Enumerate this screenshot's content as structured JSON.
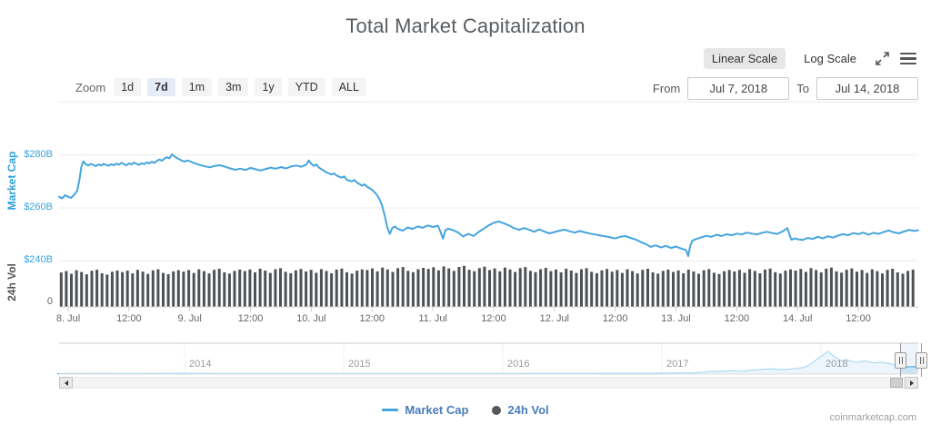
{
  "header": {
    "title": "Total Market Capitalization"
  },
  "scale_toggle": {
    "linear": "Linear Scale",
    "log": "Log Scale"
  },
  "range_selector": {
    "zoom_label": "Zoom",
    "buttons": [
      "1d",
      "7d",
      "1m",
      "3m",
      "1y",
      "YTD",
      "ALL"
    ],
    "active_button": "7d",
    "from_label": "From",
    "from_value": "Jul 7, 2018",
    "to_label": "To",
    "to_value": "Jul 14, 2018"
  },
  "legend": {
    "items": [
      {
        "label": "Market Cap",
        "symbol": "line",
        "color": "#45a5de"
      },
      {
        "label": "24h Vol",
        "symbol": "circle",
        "color": "#55585b"
      }
    ]
  },
  "watermark": "coinmarketcap.com",
  "colors": {
    "market_cap_line": "#45a5de",
    "volume_bar": "#4e5255",
    "axis_label_blue": "#38a3dc",
    "grid": "#ececec",
    "axis_line": "#d3d3d3",
    "nav_line": "#58b2e4",
    "nav_fill": "#daedf8"
  },
  "chart_data": {
    "type": "line",
    "title": "Total Market Capitalization",
    "x_unit": "hours since Jul 8 2018 00:00",
    "ylim": [
      240,
      300
    ],
    "x_ticks": [
      {
        "t": 0,
        "label": "8. Jul"
      },
      {
        "t": 12,
        "label": "12:00"
      },
      {
        "t": 24,
        "label": "9. Jul"
      },
      {
        "t": 36,
        "label": "12:00"
      },
      {
        "t": 48,
        "label": "10. Jul"
      },
      {
        "t": 60,
        "label": "12:00"
      },
      {
        "t": 72,
        "label": "11. Jul"
      },
      {
        "t": 84,
        "label": "12:00"
      },
      {
        "t": 96,
        "label": "12. Jul"
      },
      {
        "t": 108,
        "label": "12:00"
      },
      {
        "t": 120,
        "label": "13. Jul"
      },
      {
        "t": 132,
        "label": "12:00"
      },
      {
        "t": 144,
        "label": "14. Jul"
      },
      {
        "t": 156,
        "label": "12:00"
      }
    ],
    "market_cap": {
      "name": "Market Cap",
      "type": "line",
      "axis_title": "Market Cap",
      "unit": "USD billions",
      "y_ticks": [
        {
          "value": 300,
          "label": ""
        },
        {
          "value": 280,
          "label": "$280B"
        },
        {
          "value": 260,
          "label": "$260B"
        },
        {
          "value": 240,
          "label": "$240B"
        }
      ],
      "points": [
        [
          -1.8,
          264.2
        ],
        [
          -1.2,
          263.6
        ],
        [
          -0.6,
          264.8
        ],
        [
          0,
          264.2
        ],
        [
          0.6,
          263.8
        ],
        [
          1.2,
          265.0
        ],
        [
          1.8,
          266.5
        ],
        [
          2.2,
          270.5
        ],
        [
          2.6,
          275.5
        ],
        [
          3,
          277.6
        ],
        [
          3.5,
          276.4
        ],
        [
          4,
          276.0
        ],
        [
          4.5,
          276.6
        ],
        [
          5,
          276.2
        ],
        [
          5.5,
          275.8
        ],
        [
          6,
          276.4
        ],
        [
          6.5,
          276.0
        ],
        [
          7,
          276.6
        ],
        [
          7.5,
          276.2
        ],
        [
          8,
          275.9
        ],
        [
          8.5,
          276.5
        ],
        [
          9,
          276.1
        ],
        [
          9.5,
          276.7
        ],
        [
          10,
          276.3
        ],
        [
          10.5,
          277.0
        ],
        [
          11,
          276.5
        ],
        [
          11.5,
          276.1
        ],
        [
          12,
          276.8
        ],
        [
          12.5,
          276.4
        ],
        [
          13,
          277.1
        ],
        [
          13.5,
          276.6
        ],
        [
          14,
          276.2
        ],
        [
          14.5,
          276.9
        ],
        [
          15,
          276.5
        ],
        [
          15.5,
          277.2
        ],
        [
          16,
          276.8
        ],
        [
          16.5,
          277.4
        ],
        [
          17,
          277.0
        ],
        [
          17.5,
          277.7
        ],
        [
          18,
          278.3
        ],
        [
          18.5,
          277.8
        ],
        [
          19,
          278.6
        ],
        [
          19.5,
          279.1
        ],
        [
          20,
          278.7
        ],
        [
          20.5,
          280.2
        ],
        [
          21,
          279.4
        ],
        [
          21.5,
          278.8
        ],
        [
          22,
          278.3
        ],
        [
          22.5,
          277.8
        ],
        [
          23,
          277.5
        ],
        [
          23.5,
          277.9
        ],
        [
          24,
          277.6
        ],
        [
          25,
          276.8
        ],
        [
          26,
          276.2
        ],
        [
          27,
          275.7
        ],
        [
          28,
          275.3
        ],
        [
          29,
          275.9
        ],
        [
          30,
          276.1
        ],
        [
          31,
          275.5
        ],
        [
          32,
          274.9
        ],
        [
          33,
          274.4
        ],
        [
          34,
          274.8
        ],
        [
          35,
          274.3
        ],
        [
          36,
          275.1
        ],
        [
          37,
          274.6
        ],
        [
          38,
          274.1
        ],
        [
          39,
          274.7
        ],
        [
          40,
          275.2
        ],
        [
          41,
          274.8
        ],
        [
          42,
          275.4
        ],
        [
          43,
          274.9
        ],
        [
          44,
          275.6
        ],
        [
          45,
          276.0
        ],
        [
          46,
          275.5
        ],
        [
          47,
          276.3
        ],
        [
          47.5,
          277.9
        ],
        [
          48,
          276.6
        ],
        [
          48.5,
          275.9
        ],
        [
          49,
          276.4
        ],
        [
          49.5,
          275.2
        ],
        [
          50,
          274.6
        ],
        [
          51,
          273.4
        ],
        [
          52,
          272.6
        ],
        [
          52.5,
          273.0
        ],
        [
          53,
          272.2
        ],
        [
          54,
          271.4
        ],
        [
          54.5,
          271.9
        ],
        [
          55,
          270.6
        ],
        [
          56,
          270.0
        ],
        [
          56.5,
          270.5
        ],
        [
          57,
          269.6
        ],
        [
          58,
          268.4
        ],
        [
          58.5,
          268.9
        ],
        [
          59,
          268.0
        ],
        [
          60,
          266.8
        ],
        [
          60.5,
          265.9
        ],
        [
          61,
          264.8
        ],
        [
          61.5,
          263.2
        ],
        [
          62,
          260.8
        ],
        [
          62.5,
          257.0
        ],
        [
          63,
          252.6
        ],
        [
          63.5,
          250.2
        ],
        [
          64,
          252.4
        ],
        [
          64.5,
          253.0
        ],
        [
          65,
          252.2
        ],
        [
          66,
          251.4
        ],
        [
          66.5,
          252.0
        ],
        [
          67,
          252.6
        ],
        [
          68,
          252.1
        ],
        [
          69,
          253.0
        ],
        [
          70,
          252.5
        ],
        [
          71,
          253.4
        ],
        [
          72,
          252.8
        ],
        [
          73,
          253.3
        ],
        [
          73.5,
          251.0
        ],
        [
          74,
          248.4
        ],
        [
          74.5,
          251.6
        ],
        [
          75,
          252.2
        ],
        [
          76,
          251.6
        ],
        [
          77,
          250.7
        ],
        [
          78,
          249.2
        ],
        [
          78.5,
          249.8
        ],
        [
          79,
          250.2
        ],
        [
          80,
          249.4
        ],
        [
          81,
          250.9
        ],
        [
          82,
          252.1
        ],
        [
          83,
          253.4
        ],
        [
          84,
          254.4
        ],
        [
          85,
          254.9
        ],
        [
          86,
          254.2
        ],
        [
          87,
          253.4
        ],
        [
          88,
          252.4
        ],
        [
          89,
          251.7
        ],
        [
          90,
          252.4
        ],
        [
          91,
          251.8
        ],
        [
          92,
          251.0
        ],
        [
          93,
          251.9
        ],
        [
          94,
          251.1
        ],
        [
          95,
          250.4
        ],
        [
          96,
          250.9
        ],
        [
          97,
          251.4
        ],
        [
          98,
          251.8
        ],
        [
          99,
          251.2
        ],
        [
          100,
          250.7
        ],
        [
          101,
          251.3
        ],
        [
          102,
          250.8
        ],
        [
          103,
          250.3
        ],
        [
          104,
          250.0
        ],
        [
          105,
          249.6
        ],
        [
          106,
          249.3
        ],
        [
          107,
          248.9
        ],
        [
          108,
          248.5
        ],
        [
          109,
          249.1
        ],
        [
          110,
          249.4
        ],
        [
          111,
          248.7
        ],
        [
          112,
          248.1
        ],
        [
          113,
          247.2
        ],
        [
          114,
          246.4
        ],
        [
          115,
          245.3
        ],
        [
          116,
          245.9
        ],
        [
          117,
          245.1
        ],
        [
          118,
          245.7
        ],
        [
          119,
          244.9
        ],
        [
          120,
          245.4
        ],
        [
          121,
          244.7
        ],
        [
          122,
          244.1
        ],
        [
          122.4,
          241.8
        ],
        [
          122.8,
          245.5
        ],
        [
          123.2,
          247.6
        ],
        [
          124,
          248.3
        ],
        [
          125,
          248.9
        ],
        [
          126,
          249.5
        ],
        [
          127,
          249.1
        ],
        [
          128,
          249.9
        ],
        [
          129,
          249.4
        ],
        [
          130,
          250.1
        ],
        [
          131,
          249.7
        ],
        [
          132,
          250.3
        ],
        [
          133,
          250.0
        ],
        [
          134,
          250.7
        ],
        [
          135,
          250.3
        ],
        [
          136,
          250.0
        ],
        [
          137,
          250.6
        ],
        [
          138,
          251.0
        ],
        [
          139,
          250.5
        ],
        [
          140,
          250.2
        ],
        [
          141,
          251.1
        ],
        [
          142,
          252.4
        ],
        [
          142.4,
          250.0
        ],
        [
          142.8,
          248.0
        ],
        [
          143.5,
          248.5
        ],
        [
          144,
          248.2
        ],
        [
          145,
          247.9
        ],
        [
          146,
          248.7
        ],
        [
          147,
          248.3
        ],
        [
          148,
          249.1
        ],
        [
          149,
          248.5
        ],
        [
          150,
          249.3
        ],
        [
          151,
          248.8
        ],
        [
          152,
          249.6
        ],
        [
          153,
          250.1
        ],
        [
          154,
          249.7
        ],
        [
          155,
          250.5
        ],
        [
          156,
          250.1
        ],
        [
          157,
          250.7
        ],
        [
          158,
          249.9
        ],
        [
          159,
          250.6
        ],
        [
          160,
          250.2
        ],
        [
          161,
          250.9
        ],
        [
          162,
          251.5
        ],
        [
          163,
          250.8
        ],
        [
          164,
          250.4
        ],
        [
          165,
          251.1
        ],
        [
          166,
          251.7
        ],
        [
          167,
          251.3
        ],
        [
          167.8,
          251.6
        ]
      ]
    },
    "volume": {
      "name": "24h Vol",
      "type": "column",
      "axis_title": "24h Vol",
      "unit": "USD billions",
      "y_ticks": [
        {
          "value": 0,
          "label": "0"
        }
      ],
      "bar_count": 168,
      "base_cycle": [
        13.6,
        14.2,
        13.1,
        14.5,
        13.8,
        12.9,
        14.3,
        14.7,
        13.3,
        12.8,
        13.9,
        14.4
      ],
      "envelope": [
        0.96,
        0.97,
        0.985,
        1.0,
        0.99,
        1.03,
        1.06,
        1.03,
        1.0,
        0.985,
        0.975,
        0.99,
        1.015,
        0.985
      ]
    },
    "navigator": {
      "type": "area",
      "year_ticks": [
        {
          "year": 2014,
          "label": "2014"
        },
        {
          "year": 2015,
          "label": "2015"
        },
        {
          "year": 2016,
          "label": "2016"
        },
        {
          "year": 2017,
          "label": "2017"
        },
        {
          "year": 2018,
          "label": "2018"
        }
      ],
      "selected_range": {
        "from": "Jul 7, 2018",
        "to": "Jul 14, 2018"
      },
      "unit": "USD billions",
      "points": [
        [
          2013.2,
          1.5
        ],
        [
          2013.6,
          2
        ],
        [
          2013.9,
          9
        ],
        [
          2014.0,
          12
        ],
        [
          2014.1,
          9
        ],
        [
          2014.3,
          8
        ],
        [
          2014.6,
          7
        ],
        [
          2014.9,
          6
        ],
        [
          2015.0,
          5.5
        ],
        [
          2015.2,
          4.5
        ],
        [
          2015.5,
          4
        ],
        [
          2015.8,
          5
        ],
        [
          2016.0,
          7
        ],
        [
          2016.2,
          8.5
        ],
        [
          2016.5,
          11
        ],
        [
          2016.8,
          13
        ],
        [
          2016.95,
          15
        ],
        [
          2017.0,
          18
        ],
        [
          2017.1,
          26
        ],
        [
          2017.2,
          32
        ],
        [
          2017.3,
          75
        ],
        [
          2017.4,
          100
        ],
        [
          2017.45,
          110
        ],
        [
          2017.5,
          92
        ],
        [
          2017.55,
          120
        ],
        [
          2017.6,
          140
        ],
        [
          2017.65,
          165
        ],
        [
          2017.7,
          172
        ],
        [
          2017.75,
          150
        ],
        [
          2017.8,
          165
        ],
        [
          2017.85,
          195
        ],
        [
          2017.9,
          240
        ],
        [
          2017.94,
          380
        ],
        [
          2017.98,
          560
        ],
        [
          2018.0,
          640
        ],
        [
          2018.02,
          720
        ],
        [
          2018.04,
          828
        ],
        [
          2018.05,
          800
        ],
        [
          2018.07,
          700
        ],
        [
          2018.09,
          620
        ],
        [
          2018.11,
          540
        ],
        [
          2018.13,
          470
        ],
        [
          2018.16,
          525
        ],
        [
          2018.19,
          460
        ],
        [
          2018.22,
          410
        ],
        [
          2018.25,
          455
        ],
        [
          2018.28,
          470
        ],
        [
          2018.31,
          425
        ],
        [
          2018.34,
          395
        ],
        [
          2018.37,
          435
        ],
        [
          2018.4,
          405
        ],
        [
          2018.43,
          375
        ],
        [
          2018.45,
          345
        ],
        [
          2018.47,
          305
        ],
        [
          2018.5,
          285
        ],
        [
          2018.52,
          262
        ],
        [
          2018.54,
          250
        ],
        [
          2018.56,
          255
        ],
        [
          2018.58,
          262
        ],
        [
          2018.6,
          250
        ],
        [
          2018.61,
          248
        ]
      ]
    }
  }
}
